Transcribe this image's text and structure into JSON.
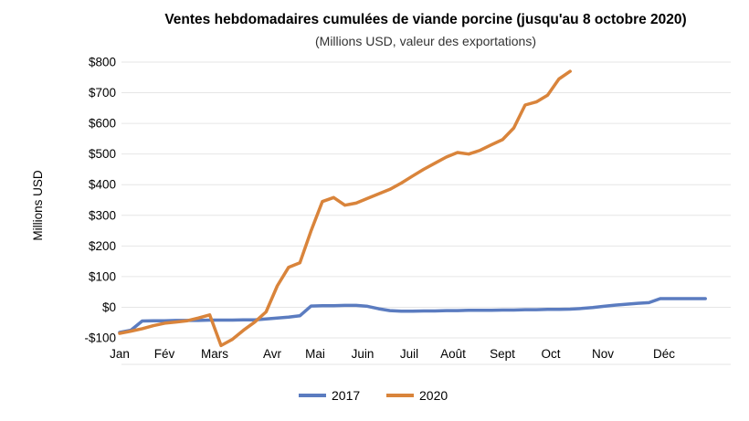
{
  "chart_data": {
    "type": "line",
    "title": "Ventes hebdomadaires cumulées de viande porcine (jusqu'au 8 octobre 2020)",
    "subtitle": "(Millions USD, valeur des exportations)",
    "ylabel": "Millions USD",
    "x_tick_labels": [
      "Jan",
      "Fév",
      "Mars",
      "Avr",
      "Mai",
      "Juin",
      "Juil",
      "Août",
      "Sept",
      "Oct",
      "Nov",
      "Déc"
    ],
    "y_tick_labels": [
      "$800",
      "$700",
      "$600",
      "$500",
      "$400",
      "$300",
      "$200",
      "$100",
      "$0",
      "-$100"
    ],
    "y_tick_values": [
      800,
      700,
      600,
      500,
      400,
      300,
      200,
      100,
      0,
      -100
    ],
    "ylim": [
      -100,
      800
    ],
    "grid": true,
    "legend_position": "bottom",
    "units": "Millions USD",
    "series": [
      {
        "name": "2017",
        "color": "#5b7cc0",
        "values": [
          -82,
          -75,
          -45,
          -44,
          -44,
          -43,
          -43,
          -43,
          -42,
          -42,
          -42,
          -41,
          -41,
          -38,
          -35,
          -32,
          -28,
          4,
          5,
          5,
          6,
          6,
          3,
          -5,
          -11,
          -13,
          -13,
          -12,
          -12,
          -11,
          -11,
          -10,
          -10,
          -10,
          -9,
          -9,
          -8,
          -8,
          -7,
          -7,
          -6,
          -4,
          -1,
          3,
          7,
          10,
          13,
          15,
          28,
          28,
          28,
          28,
          28
        ]
      },
      {
        "name": "2020",
        "color": "#d9843b",
        "values": [
          -85,
          -78,
          -70,
          -60,
          -52,
          -48,
          -44,
          -35,
          -25,
          -125,
          -105,
          -75,
          -48,
          -15,
          70,
          130,
          145,
          250,
          345,
          358,
          333,
          340,
          355,
          370,
          385,
          405,
          428,
          450,
          470,
          490,
          505,
          500,
          512,
          530,
          547,
          585,
          660,
          670,
          692,
          745,
          770
        ]
      }
    ],
    "colors": {
      "gridline": "#e6e6e6",
      "text": "#000000",
      "background": "#ffffff"
    }
  }
}
